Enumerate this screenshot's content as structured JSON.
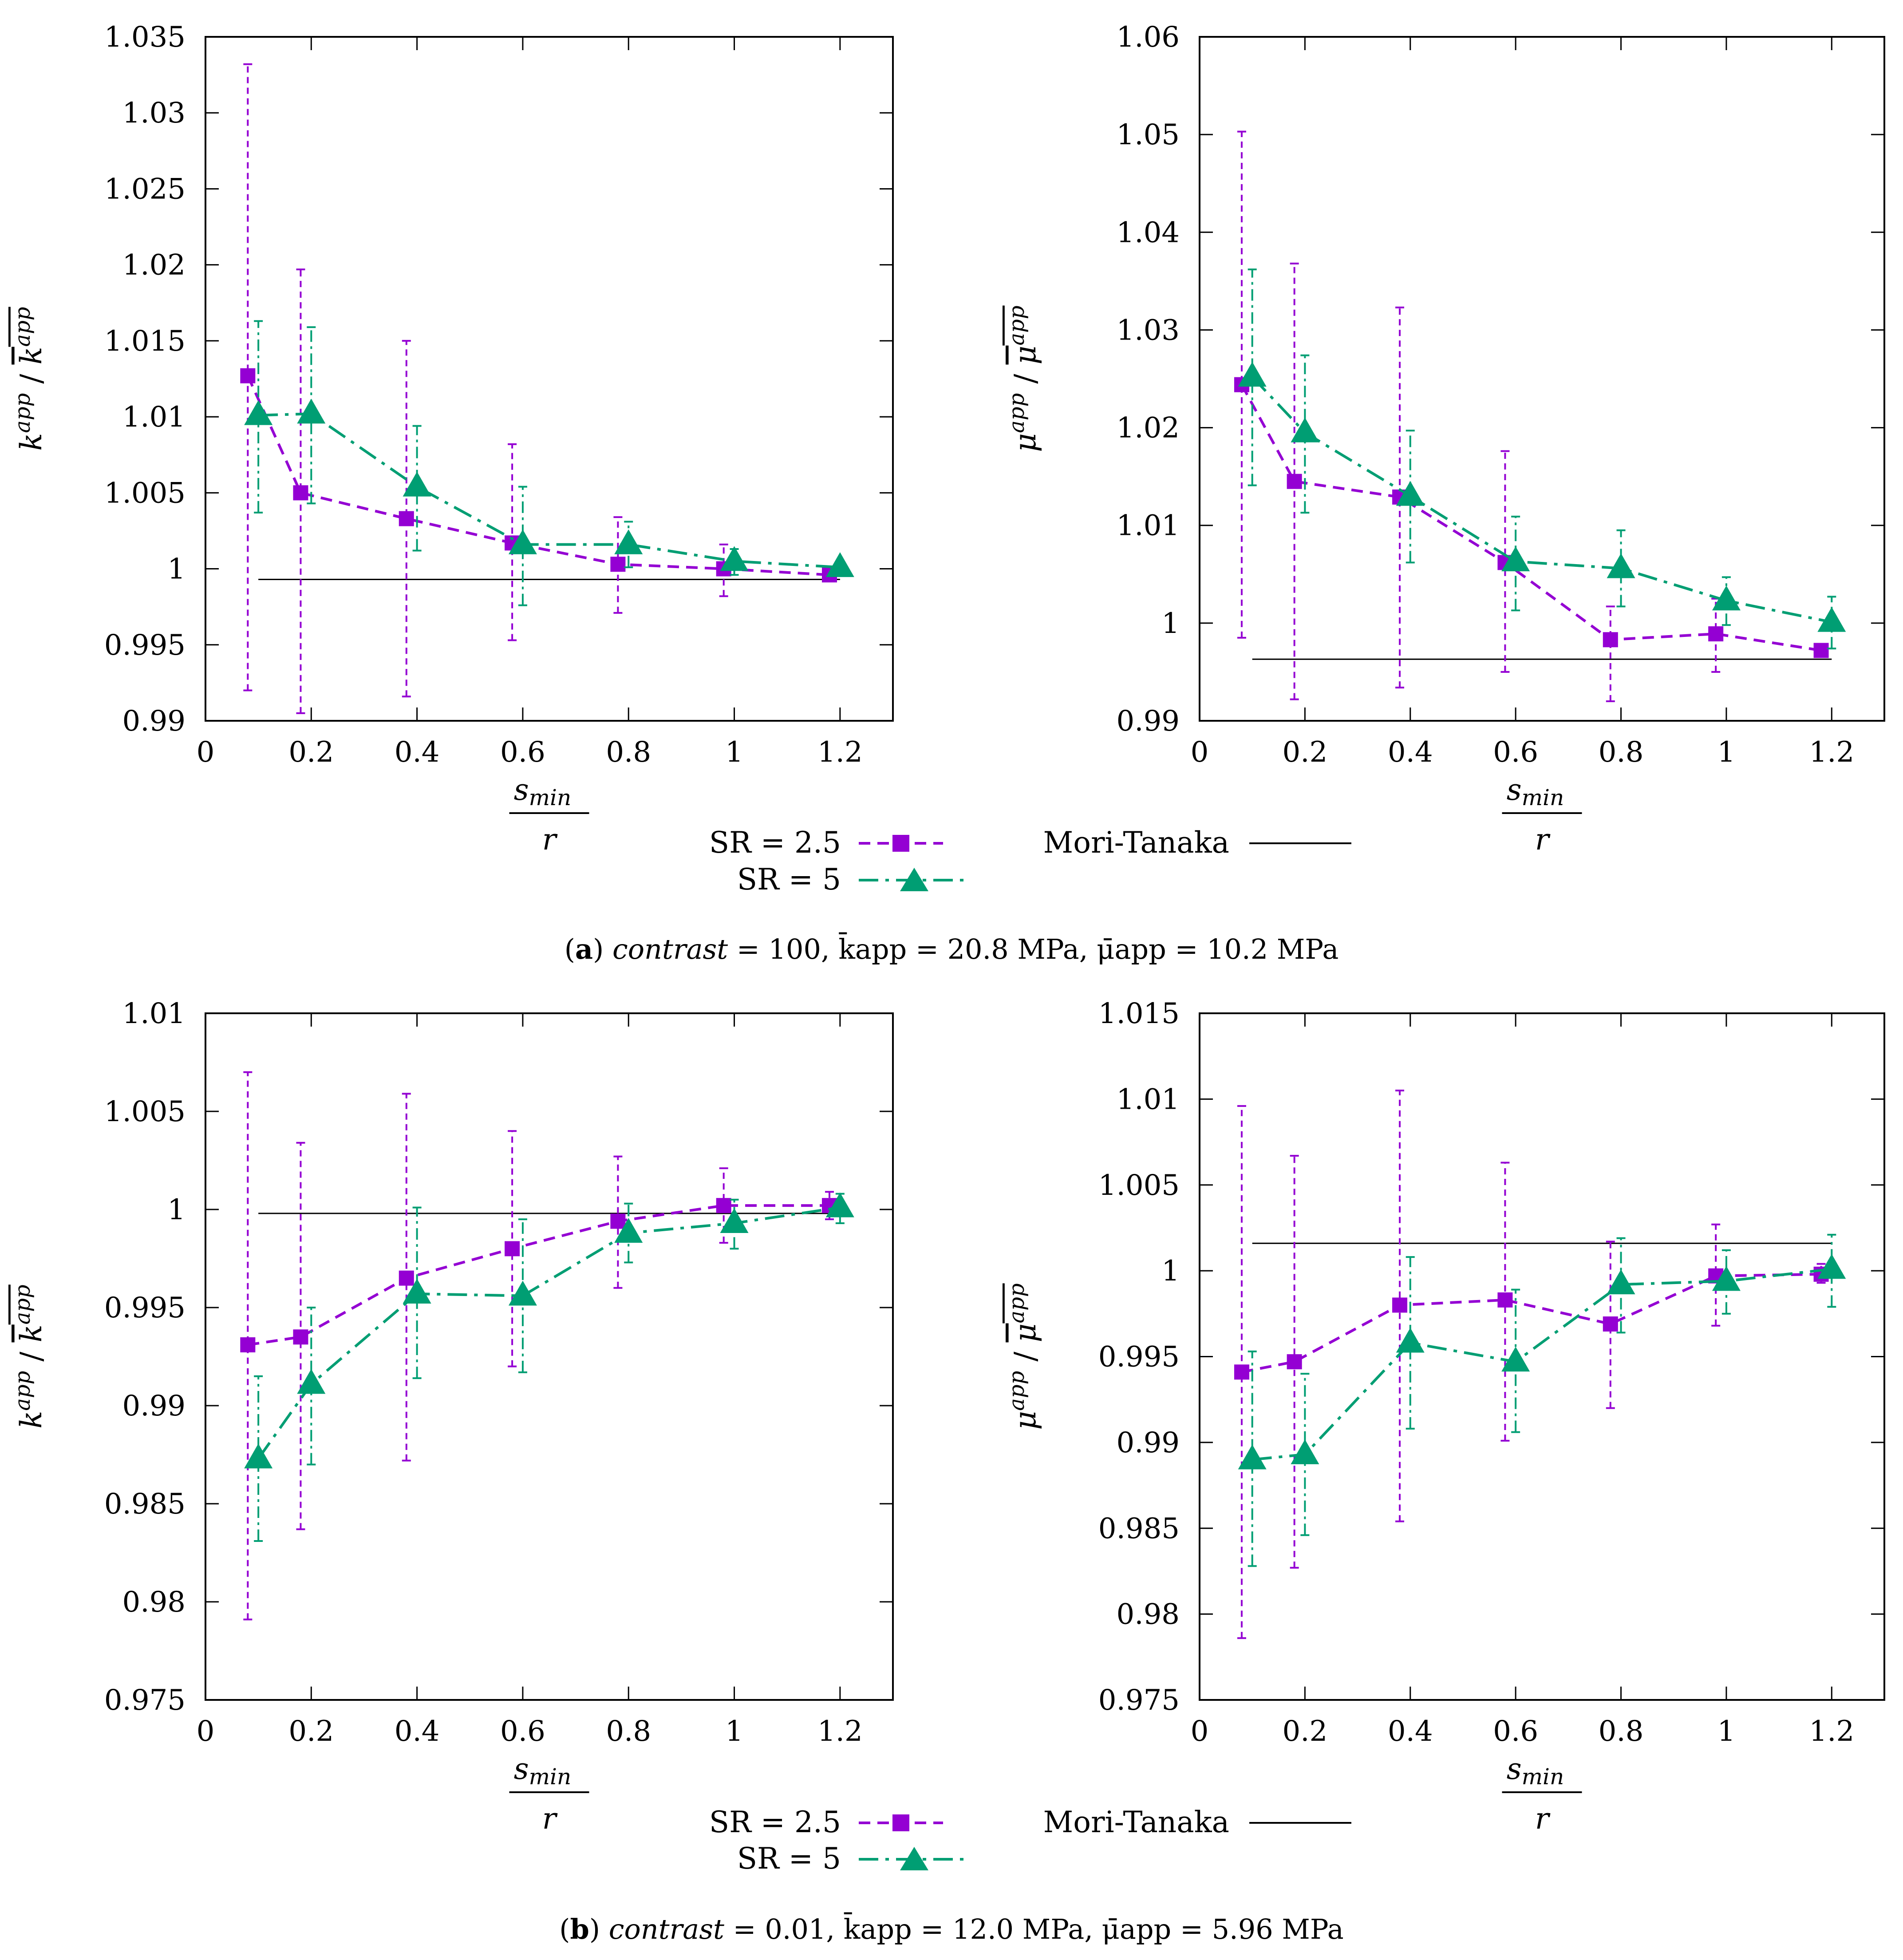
{
  "colors": {
    "sr25": "#9400d3",
    "sr5": "#009e73",
    "mori": "#000000"
  },
  "chart_data": [
    {
      "type": "line",
      "ylabel": "k^app / k^app (mean)",
      "ylabel_parts": {
        "num": "k",
        "num_sup": "app",
        "den": "k",
        "den_sup": "app"
      },
      "xlabel_num": "s",
      "xlabel_num_sub": "min",
      "xlabel_den": "r",
      "xlim": [
        0,
        1.3
      ],
      "ylim": [
        0.99,
        1.035
      ],
      "xticks": [
        0,
        0.2,
        0.4,
        0.6,
        0.8,
        1,
        1.2
      ],
      "xtick_labels": [
        "0",
        "0.2",
        "0.4",
        "0.6",
        "0.8",
        "1",
        "1.2"
      ],
      "yticks": [
        0.99,
        0.995,
        1,
        1.005,
        1.01,
        1.015,
        1.02,
        1.025,
        1.03,
        1.035
      ],
      "ytick_labels": [
        "0.99",
        "0.995",
        "1",
        "1.005",
        "1.01",
        "1.015",
        "1.02",
        "1.025",
        "1.03",
        "1.035"
      ],
      "series": [
        {
          "name": "SR = 2.5",
          "key": "sr25",
          "x": [
            0.08,
            0.18,
            0.38,
            0.58,
            0.78,
            0.98,
            1.18
          ],
          "y": [
            1.0127,
            1.005,
            1.0033,
            1.0017,
            1.0003,
            1.0,
            0.9996
          ],
          "err_low": [
            0.992,
            0.9905,
            0.9916,
            0.9953,
            0.9971,
            0.9982,
            0.9993
          ],
          "err_high": [
            1.0332,
            1.0197,
            1.015,
            1.0082,
            1.0034,
            1.0016,
            0.9999
          ]
        },
        {
          "name": "SR = 5",
          "key": "sr5",
          "x": [
            0.1,
            0.2,
            0.4,
            0.6,
            0.8,
            1.0,
            1.2
          ],
          "y": [
            1.0101,
            1.0102,
            1.0054,
            1.0016,
            1.0016,
            1.0005,
            1.0001
          ],
          "err_low": [
            1.0037,
            1.0043,
            1.0012,
            0.9976,
            1.0001,
            0.9996,
            0.9997
          ],
          "err_high": [
            1.0163,
            1.0159,
            1.0094,
            1.0054,
            1.0031,
            1.0013,
            1.0005
          ]
        }
      ],
      "mori_tanaka": {
        "name": "Mori-Tanaka",
        "x": [
          0.1,
          1.2
        ],
        "y": 0.9993
      }
    },
    {
      "type": "line",
      "ylabel": "mu^app / mu^app (mean)",
      "ylabel_parts": {
        "num": "μ",
        "num_sup": "app",
        "den": "μ",
        "den_sup": "app"
      },
      "xlabel_num": "s",
      "xlabel_num_sub": "min",
      "xlabel_den": "r",
      "xlim": [
        0,
        1.3
      ],
      "ylim": [
        0.99,
        1.06
      ],
      "xticks": [
        0,
        0.2,
        0.4,
        0.6,
        0.8,
        1,
        1.2
      ],
      "xtick_labels": [
        "0",
        "0.2",
        "0.4",
        "0.6",
        "0.8",
        "1",
        "1.2"
      ],
      "yticks": [
        0.99,
        1,
        1.01,
        1.02,
        1.03,
        1.04,
        1.05,
        1.06
      ],
      "ytick_labels": [
        "0.99",
        "1",
        "1.01",
        "1.02",
        "1.03",
        "1.04",
        "1.05",
        "1.06"
      ],
      "series": [
        {
          "name": "SR = 2.5",
          "key": "sr25",
          "x": [
            0.08,
            0.18,
            0.38,
            0.58,
            0.78,
            0.98,
            1.18
          ],
          "y": [
            1.0244,
            1.0145,
            1.0129,
            1.0062,
            0.9983,
            0.9989,
            0.9972
          ],
          "err_low": [
            0.9985,
            0.9922,
            0.9934,
            0.995,
            0.992,
            0.995,
            0.9968
          ],
          "err_high": [
            1.0503,
            1.0368,
            1.0323,
            1.0176,
            1.0017,
            1.0025,
            0.9976
          ]
        },
        {
          "name": "SR = 5",
          "key": "sr5",
          "x": [
            0.1,
            0.2,
            0.4,
            0.6,
            0.8,
            1.0,
            1.2
          ],
          "y": [
            1.0252,
            1.0195,
            1.013,
            1.0063,
            1.0056,
            1.0023,
            1.0001
          ],
          "err_low": [
            1.0141,
            1.0113,
            1.0062,
            1.0013,
            1.0017,
            0.9998,
            0.9974
          ],
          "err_high": [
            1.0362,
            1.0274,
            1.0197,
            1.0109,
            1.0095,
            1.0047,
            1.0027
          ]
        }
      ],
      "mori_tanaka": {
        "name": "Mori-Tanaka",
        "x": [
          0.1,
          1.2
        ],
        "y": 0.9963
      }
    },
    {
      "type": "line",
      "ylabel": "k^app / k^app (mean)",
      "ylabel_parts": {
        "num": "k",
        "num_sup": "app",
        "den": "k",
        "den_sup": "app"
      },
      "xlabel_num": "s",
      "xlabel_num_sub": "min",
      "xlabel_den": "r",
      "xlim": [
        0,
        1.3
      ],
      "ylim": [
        0.975,
        1.01
      ],
      "xticks": [
        0,
        0.2,
        0.4,
        0.6,
        0.8,
        1,
        1.2
      ],
      "xtick_labels": [
        "0",
        "0.2",
        "0.4",
        "0.6",
        "0.8",
        "1",
        "1.2"
      ],
      "yticks": [
        0.975,
        0.98,
        0.985,
        0.99,
        0.995,
        1,
        1.005,
        1.01
      ],
      "ytick_labels": [
        "0.975",
        "0.98",
        "0.985",
        "0.99",
        "0.995",
        "1",
        "1.005",
        "1.01"
      ],
      "series": [
        {
          "name": "SR = 2.5",
          "key": "sr25",
          "x": [
            0.08,
            0.18,
            0.38,
            0.58,
            0.78,
            0.98,
            1.18
          ],
          "y": [
            0.9931,
            0.9935,
            0.9965,
            0.998,
            0.9994,
            1.0002,
            1.0002
          ],
          "err_low": [
            0.9791,
            0.9837,
            0.9872,
            0.992,
            0.996,
            0.9983,
            0.9995
          ],
          "err_high": [
            1.007,
            1.0034,
            1.0059,
            1.004,
            1.0027,
            1.0021,
            1.0009
          ]
        },
        {
          "name": "SR = 5",
          "key": "sr5",
          "x": [
            0.1,
            0.2,
            0.4,
            0.6,
            0.8,
            1.0,
            1.2
          ],
          "y": [
            0.9873,
            0.9911,
            0.9957,
            0.9956,
            0.9988,
            0.9993,
            1.0001
          ],
          "err_low": [
            0.9831,
            0.987,
            0.9914,
            0.9917,
            0.9973,
            0.998,
            0.9993
          ],
          "err_high": [
            0.9915,
            0.995,
            1.0001,
            0.9995,
            1.0003,
            1.0005,
            1.0008
          ]
        }
      ],
      "mori_tanaka": {
        "name": "Mori-Tanaka",
        "x": [
          0.1,
          1.2
        ],
        "y": 0.9998
      }
    },
    {
      "type": "line",
      "ylabel": "mu^app / mu^app (mean)",
      "ylabel_parts": {
        "num": "μ",
        "num_sup": "app",
        "den": "μ",
        "den_sup": "app"
      },
      "xlabel_num": "s",
      "xlabel_num_sub": "min",
      "xlabel_den": "r",
      "xlim": [
        0,
        1.3
      ],
      "ylim": [
        0.975,
        1.015
      ],
      "xticks": [
        0,
        0.2,
        0.4,
        0.6,
        0.8,
        1,
        1.2
      ],
      "xtick_labels": [
        "0",
        "0.2",
        "0.4",
        "0.6",
        "0.8",
        "1",
        "1.2"
      ],
      "yticks": [
        0.975,
        0.98,
        0.985,
        0.99,
        0.995,
        1,
        1.005,
        1.01,
        1.015
      ],
      "ytick_labels": [
        "0.975",
        "0.98",
        "0.985",
        "0.99",
        "0.995",
        "1",
        "1.005",
        "1.01",
        "1.015"
      ],
      "series": [
        {
          "name": "SR = 2.5",
          "key": "sr25",
          "x": [
            0.08,
            0.18,
            0.38,
            0.58,
            0.78,
            0.98,
            1.18
          ],
          "y": [
            0.9941,
            0.9947,
            0.998,
            0.9983,
            0.9969,
            0.9997,
            0.9998
          ],
          "err_low": [
            0.9786,
            0.9827,
            0.9854,
            0.9901,
            0.992,
            0.9968,
            0.9993
          ],
          "err_high": [
            1.0096,
            1.0067,
            1.0105,
            1.0063,
            1.0017,
            1.0027,
            1.0004
          ]
        },
        {
          "name": "SR = 5",
          "key": "sr5",
          "x": [
            0.1,
            0.2,
            0.4,
            0.6,
            0.8,
            1.0,
            1.2
          ],
          "y": [
            0.989,
            0.9893,
            0.9958,
            0.9947,
            0.9992,
            0.9994,
            1.0001
          ],
          "err_low": [
            0.9828,
            0.9846,
            0.9908,
            0.9906,
            0.9964,
            0.9975,
            0.9979
          ],
          "err_high": [
            0.9953,
            0.994,
            1.0008,
            0.9989,
            1.0019,
            1.0012,
            1.0021
          ]
        }
      ],
      "mori_tanaka": {
        "name": "Mori-Tanaka",
        "x": [
          0.1,
          1.2
        ],
        "y": 1.0016
      }
    }
  ],
  "legend": {
    "sr25_label": "SR = 2.5",
    "sr5_label": "SR = 5",
    "mori_label": "Mori-Tanaka"
  },
  "captions": {
    "a": {
      "tag": "a",
      "italic": "contrast",
      "rest": " = 100, k̄app = 20.8 MPa, μ̄app = 10.2 MPa"
    },
    "b": {
      "tag": "b",
      "italic": "contrast",
      "rest": " = 0.01, k̄app = 12.0 MPa, μ̄app = 5.96 MPa"
    }
  }
}
